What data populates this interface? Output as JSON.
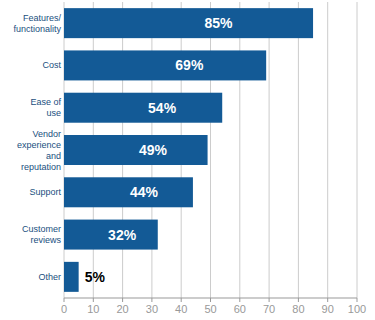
{
  "chart_data": {
    "type": "bar",
    "orientation": "horizontal",
    "categories": [
      "Features/ functionality",
      "Cost",
      "Ease of use",
      "Vendor experience and reputation",
      "Support",
      "Customer reviews",
      "Other"
    ],
    "values": [
      85,
      69,
      54,
      49,
      44,
      32,
      5
    ],
    "value_labels": [
      "85%",
      "69%",
      "54%",
      "49%",
      "44%",
      "32%",
      "5%"
    ],
    "color": "#135a96",
    "xlim": [
      0,
      100
    ],
    "xticks": [
      0,
      10,
      20,
      30,
      40,
      50,
      60,
      70,
      80,
      90,
      100
    ],
    "grid": true,
    "data_labels": true
  }
}
